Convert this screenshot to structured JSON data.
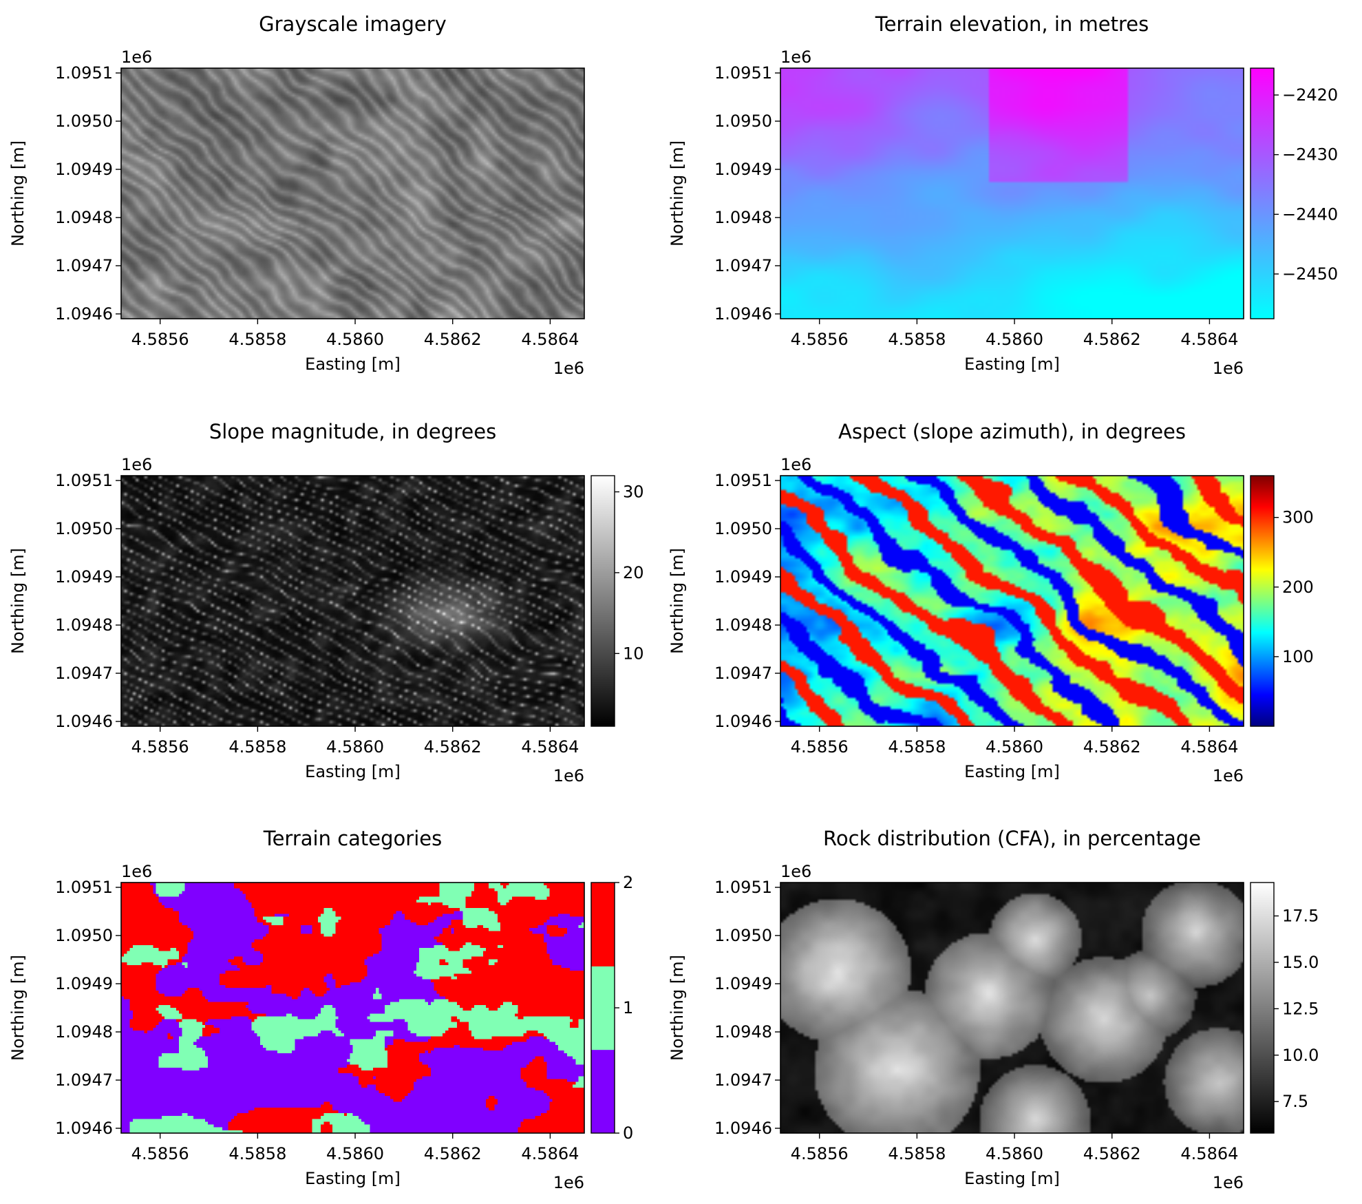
{
  "chart_data": [
    {
      "type": "heatmap",
      "title": "Grayscale imagery",
      "xlabel": "Easting [m]",
      "ylabel": "Northing [m]",
      "xticks": [
        "4.5856",
        "4.5858",
        "4.5860",
        "4.5862",
        "4.5864"
      ],
      "yticks": [
        "1.0946",
        "1.0947",
        "1.0948",
        "1.0949",
        "1.0950",
        "1.0951"
      ],
      "x_offset": "1e6",
      "y_offset": "1e6",
      "xlim": [
        4.58552,
        4.58647
      ],
      "ylim": [
        1.09459,
        1.09511
      ],
      "colormap": "gray",
      "colorbar": null
    },
    {
      "type": "heatmap",
      "title": "Terrain elevation, in metres",
      "xlabel": "Easting [m]",
      "ylabel": "Northing [m]",
      "xticks": [
        "4.5856",
        "4.5858",
        "4.5860",
        "4.5862",
        "4.5864"
      ],
      "yticks": [
        "1.0946",
        "1.0947",
        "1.0948",
        "1.0949",
        "1.0950",
        "1.0951"
      ],
      "x_offset": "1e6",
      "y_offset": "1e6",
      "xlim": [
        4.58552,
        4.58647
      ],
      "ylim": [
        1.09459,
        1.09511
      ],
      "colormap": "cool",
      "colorbar": {
        "min": -2457.5,
        "max": -2415.5,
        "ticks": [
          "−2420",
          "−2430",
          "−2440",
          "−2450"
        ],
        "tick_values": [
          -2420,
          -2430,
          -2440,
          -2450
        ],
        "colors": [
          "#00ffff",
          "#ff00ff"
        ]
      }
    },
    {
      "type": "heatmap",
      "title": "Slope magnitude, in degrees",
      "xlabel": "Easting [m]",
      "ylabel": "Northing [m]",
      "xticks": [
        "4.5856",
        "4.5858",
        "4.5860",
        "4.5862",
        "4.5864"
      ],
      "yticks": [
        "1.0946",
        "1.0947",
        "1.0948",
        "1.0949",
        "1.0950",
        "1.0951"
      ],
      "x_offset": "1e6",
      "y_offset": "1e6",
      "xlim": [
        4.58552,
        4.58647
      ],
      "ylim": [
        1.09459,
        1.09511
      ],
      "colormap": "gray",
      "colorbar": {
        "min": 1,
        "max": 32,
        "ticks": [
          "30",
          "20",
          "10"
        ],
        "tick_values": [
          30,
          20,
          10
        ],
        "colors": [
          "#000000",
          "#ffffff"
        ]
      }
    },
    {
      "type": "heatmap",
      "title": "Aspect (slope azimuth), in degrees",
      "xlabel": "Easting [m]",
      "ylabel": "Northing [m]",
      "xticks": [
        "4.5856",
        "4.5858",
        "4.5860",
        "4.5862",
        "4.5864"
      ],
      "yticks": [
        "1.0946",
        "1.0947",
        "1.0948",
        "1.0949",
        "1.0950",
        "1.0951"
      ],
      "x_offset": "1e6",
      "y_offset": "1e6",
      "xlim": [
        4.58552,
        4.58647
      ],
      "ylim": [
        1.09459,
        1.09511
      ],
      "colormap": "jet",
      "colorbar": {
        "min": 0,
        "max": 360,
        "ticks": [
          "300",
          "200",
          "100"
        ],
        "tick_values": [
          300,
          200,
          100
        ],
        "colors": [
          "#00007f",
          "#0000ff",
          "#007fff",
          "#00ffff",
          "#7fff7f",
          "#ffff00",
          "#ff7f00",
          "#ff0000",
          "#7f0000"
        ]
      }
    },
    {
      "type": "heatmap",
      "title": "Terrain categories",
      "xlabel": "Easting [m]",
      "ylabel": "Northing [m]",
      "xticks": [
        "4.5856",
        "4.5858",
        "4.5860",
        "4.5862",
        "4.5864"
      ],
      "yticks": [
        "1.0946",
        "1.0947",
        "1.0948",
        "1.0949",
        "1.0950",
        "1.0951"
      ],
      "x_offset": "1e6",
      "y_offset": "1e6",
      "xlim": [
        4.58552,
        4.58647
      ],
      "ylim": [
        1.09459,
        1.09511
      ],
      "categories": [
        0,
        1,
        2
      ],
      "category_colors": [
        "#8000ff",
        "#80ffb4",
        "#ff0000"
      ],
      "colorbar": {
        "min": 0,
        "max": 2,
        "ticks": [
          "2",
          "1",
          "0"
        ],
        "tick_values": [
          2,
          1,
          0
        ],
        "discrete": true
      }
    },
    {
      "type": "heatmap",
      "title": "Rock distribution (CFA), in percentage",
      "xlabel": "Easting [m]",
      "ylabel": "Northing [m]",
      "xticks": [
        "4.5856",
        "4.5858",
        "4.5860",
        "4.5862",
        "4.5864"
      ],
      "yticks": [
        "1.0946",
        "1.0947",
        "1.0948",
        "1.0949",
        "1.0950",
        "1.0951"
      ],
      "x_offset": "1e6",
      "y_offset": "1e6",
      "xlim": [
        4.58552,
        4.58647
      ],
      "ylim": [
        1.09459,
        1.09511
      ],
      "colormap": "gray",
      "colorbar": {
        "min": 5.8,
        "max": 19.3,
        "ticks": [
          "17.5",
          "15.0",
          "12.5",
          "10.0",
          "7.5"
        ],
        "tick_values": [
          17.5,
          15.0,
          12.5,
          10.0,
          7.5
        ],
        "colors": [
          "#000000",
          "#ffffff"
        ]
      }
    }
  ]
}
